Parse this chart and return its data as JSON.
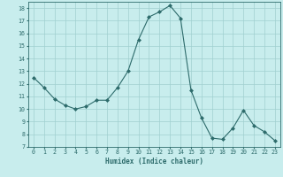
{
  "x": [
    0,
    1,
    2,
    3,
    4,
    5,
    6,
    7,
    8,
    9,
    10,
    11,
    12,
    13,
    14,
    15,
    16,
    17,
    18,
    19,
    20,
    21,
    22,
    23
  ],
  "y": [
    12.5,
    11.7,
    10.8,
    10.3,
    10.0,
    10.2,
    10.7,
    10.7,
    11.7,
    13.0,
    15.5,
    17.3,
    17.7,
    18.2,
    17.2,
    11.5,
    9.3,
    7.7,
    7.6,
    8.5,
    9.9,
    8.7,
    8.2,
    7.5
  ],
  "xlabel": "Humidex (Indice chaleur)",
  "xlim": [
    -0.5,
    23.5
  ],
  "ylim": [
    7,
    18.5
  ],
  "yticks": [
    7,
    8,
    9,
    10,
    11,
    12,
    13,
    14,
    15,
    16,
    17,
    18
  ],
  "xticks": [
    0,
    1,
    2,
    3,
    4,
    5,
    6,
    7,
    8,
    9,
    10,
    11,
    12,
    13,
    14,
    15,
    16,
    17,
    18,
    19,
    20,
    21,
    22,
    23
  ],
  "line_color": "#2d6b6b",
  "marker": "D",
  "marker_size": 2,
  "bg_color": "#c8eded",
  "grid_color": "#a0d0d0",
  "xlabel_fontsize": 5.5,
  "tick_fontsize": 4.8
}
